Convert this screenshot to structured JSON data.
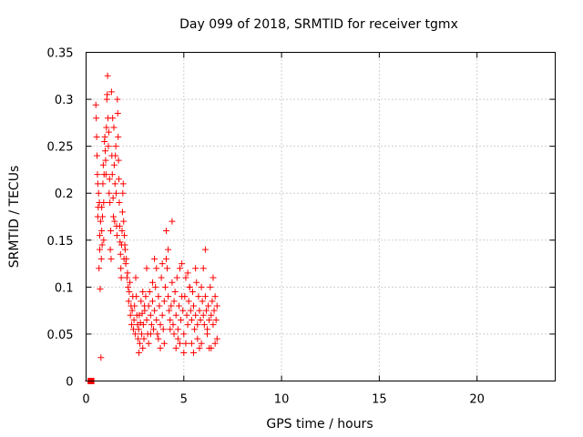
{
  "chart_data": {
    "type": "scatter",
    "title": "Day 099 of 2018, SRMTID for receiver tgmx",
    "xlabel": "GPS time / hours",
    "ylabel": "SRMTID / TECUs",
    "xlim": [
      0,
      24
    ],
    "ylim": [
      0,
      0.35
    ],
    "xticks": [
      0,
      5,
      10,
      15,
      20
    ],
    "xtick_labels": [
      "0",
      "5",
      "10",
      "15",
      "20"
    ],
    "yticks": [
      0,
      0.05,
      0.1,
      0.15,
      0.2,
      0.25,
      0.3,
      0.35
    ],
    "ytick_labels": [
      "0",
      "0.05",
      "0.1",
      "0.15",
      "0.2",
      "0.25",
      "0.3",
      "0.35"
    ],
    "grid": true,
    "marker": "+",
    "color": "#ff0000",
    "series": [
      {
        "x": [
          0.1,
          0.12,
          0.14,
          0.16,
          0.18,
          0.2,
          0.22,
          0.24,
          0.26,
          0.28,
          0.3,
          0.32,
          0.34,
          0.36,
          0.38,
          0.4,
          0.5,
          0.52,
          0.54,
          0.56,
          0.58,
          0.6,
          0.6,
          0.62,
          0.64,
          0.66,
          0.68,
          0.7,
          0.7,
          0.72,
          0.74,
          0.76,
          0.78,
          0.8,
          0.8,
          0.82,
          0.84,
          0.86,
          0.88,
          0.9,
          0.9,
          0.92,
          0.94,
          0.96,
          0.98,
          1.0,
          1.02,
          1.04,
          1.06,
          1.08,
          1.1,
          1.12,
          1.14,
          1.16,
          1.18,
          1.2,
          1.22,
          1.24,
          1.26,
          1.28,
          1.3,
          1.32,
          1.34,
          1.36,
          1.38,
          1.4,
          1.42,
          1.44,
          1.46,
          1.48,
          1.5,
          1.52,
          1.54,
          1.56,
          1.58,
          1.6,
          1.62,
          1.64,
          1.66,
          1.68,
          1.7,
          1.72,
          1.74,
          1.76,
          1.78,
          1.8,
          1.82,
          1.84,
          1.86,
          1.88,
          1.9,
          1.92,
          1.94,
          1.96,
          1.98,
          2.0,
          2.03,
          2.06,
          2.09,
          2.12,
          2.15,
          2.18,
          2.21,
          2.24,
          2.27,
          2.3,
          2.33,
          2.36,
          2.39,
          2.42,
          2.45,
          2.48,
          2.51,
          2.54,
          2.57,
          2.6,
          2.63,
          2.66,
          2.69,
          2.72,
          2.75,
          2.78,
          2.81,
          2.84,
          2.87,
          2.9,
          2.93,
          2.96,
          2.99,
          3.0,
          3.05,
          3.1,
          3.15,
          3.2,
          3.25,
          3.3,
          3.35,
          3.4,
          3.45,
          3.5,
          3.55,
          3.6,
          3.65,
          3.7,
          3.75,
          3.8,
          3.85,
          3.9,
          3.95,
          4.0,
          4.05,
          4.1,
          4.15,
          4.2,
          4.25,
          4.3,
          4.35,
          4.4,
          4.45,
          4.5,
          4.55,
          4.6,
          4.65,
          4.7,
          4.75,
          4.8,
          4.85,
          4.9,
          4.95,
          5.0,
          5.05,
          5.1,
          5.15,
          5.2,
          5.25,
          5.3,
          5.35,
          5.4,
          5.45,
          5.5,
          5.55,
          5.6,
          5.65,
          5.7,
          5.75,
          5.8,
          5.85,
          5.9,
          5.95,
          6.0,
          6.05,
          6.1,
          6.15,
          6.2,
          6.25,
          6.3,
          6.35,
          6.4,
          6.45,
          6.5,
          6.55,
          6.6,
          6.65,
          6.7,
          3.1,
          3.3,
          3.5,
          3.7,
          3.9,
          4.1,
          4.3,
          4.5,
          4.7,
          4.9,
          5.1,
          5.3,
          5.5,
          5.7,
          5.9,
          6.1,
          6.3,
          6.5,
          6.7,
          2.7,
          2.9,
          3.2,
          3.4,
          3.6,
          3.8,
          4.0,
          4.2,
          4.4,
          4.6,
          4.8,
          5.0,
          5.2,
          5.4,
          5.6,
          5.8,
          6.0,
          6.2,
          6.4,
          6.6
        ],
        "y": [
          0,
          0,
          0,
          0,
          0,
          0,
          0,
          0,
          0,
          0,
          0,
          0,
          0,
          0,
          0,
          0,
          0.294,
          0.28,
          0.26,
          0.24,
          0.22,
          0.21,
          0.175,
          0.185,
          0.2,
          0.12,
          0.19,
          0.14,
          0.155,
          0.098,
          0.17,
          0.025,
          0.13,
          0.185,
          0.16,
          0.145,
          0.175,
          0.21,
          0.23,
          0.19,
          0.15,
          0.22,
          0.255,
          0.26,
          0.245,
          0.235,
          0.22,
          0.27,
          0.3,
          0.305,
          0.325,
          0.28,
          0.25,
          0.265,
          0.2,
          0.215,
          0.19,
          0.14,
          0.16,
          0.13,
          0.308,
          0.24,
          0.22,
          0.28,
          0.195,
          0.175,
          0.27,
          0.23,
          0.17,
          0.21,
          0.24,
          0.25,
          0.2,
          0.165,
          0.155,
          0.3,
          0.285,
          0.26,
          0.235,
          0.215,
          0.19,
          0.165,
          0.148,
          0.135,
          0.12,
          0.11,
          0.145,
          0.16,
          0.18,
          0.2,
          0.21,
          0.17,
          0.13,
          0.155,
          0.145,
          0.14,
          0.125,
          0.13,
          0.11,
          0.115,
          0.1,
          0.085,
          0.095,
          0.105,
          0.07,
          0.08,
          0.06,
          0.075,
          0.09,
          0.055,
          0.065,
          0.08,
          0.05,
          0.11,
          0.09,
          0.07,
          0.06,
          0.045,
          0.055,
          0.07,
          0.04,
          0.062,
          0.085,
          0.05,
          0.072,
          0.095,
          0.06,
          0.045,
          0.08,
          0.075,
          0.09,
          0.065,
          0.05,
          0.08,
          0.095,
          0.07,
          0.06,
          0.085,
          0.055,
          0.075,
          0.1,
          0.065,
          0.05,
          0.09,
          0.08,
          0.06,
          0.11,
          0.07,
          0.055,
          0.085,
          0.1,
          0.13,
          0.12,
          0.09,
          0.075,
          0.065,
          0.08,
          0.105,
          0.06,
          0.085,
          0.095,
          0.07,
          0.11,
          0.055,
          0.08,
          0.12,
          0.065,
          0.09,
          0.075,
          0.05,
          0.09,
          0.11,
          0.07,
          0.06,
          0.085,
          0.1,
          0.075,
          0.065,
          0.095,
          0.08,
          0.055,
          0.07,
          0.105,
          0.06,
          0.09,
          0.075,
          0.065,
          0.1,
          0.085,
          0.07,
          0.06,
          0.09,
          0.075,
          0.055,
          0.08,
          0.065,
          0.1,
          0.07,
          0.085,
          0.06,
          0.075,
          0.09,
          0.065,
          0.08,
          0.12,
          0.05,
          0.13,
          0.045,
          0.125,
          0.16,
          0.055,
          0.05,
          0.045,
          0.125,
          0.04,
          0.1,
          0.03,
          0.045,
          0.04,
          0.14,
          0.035,
          0.11,
          0.045,
          0.03,
          0.035,
          0.04,
          0.105,
          0.12,
          0.035,
          0.04,
          0.14,
          0.17,
          0.035,
          0.04,
          0.03,
          0.115,
          0.04,
          0.12,
          0.035,
          0.12,
          0.05,
          0.035,
          0.04
        ]
      }
    ]
  }
}
